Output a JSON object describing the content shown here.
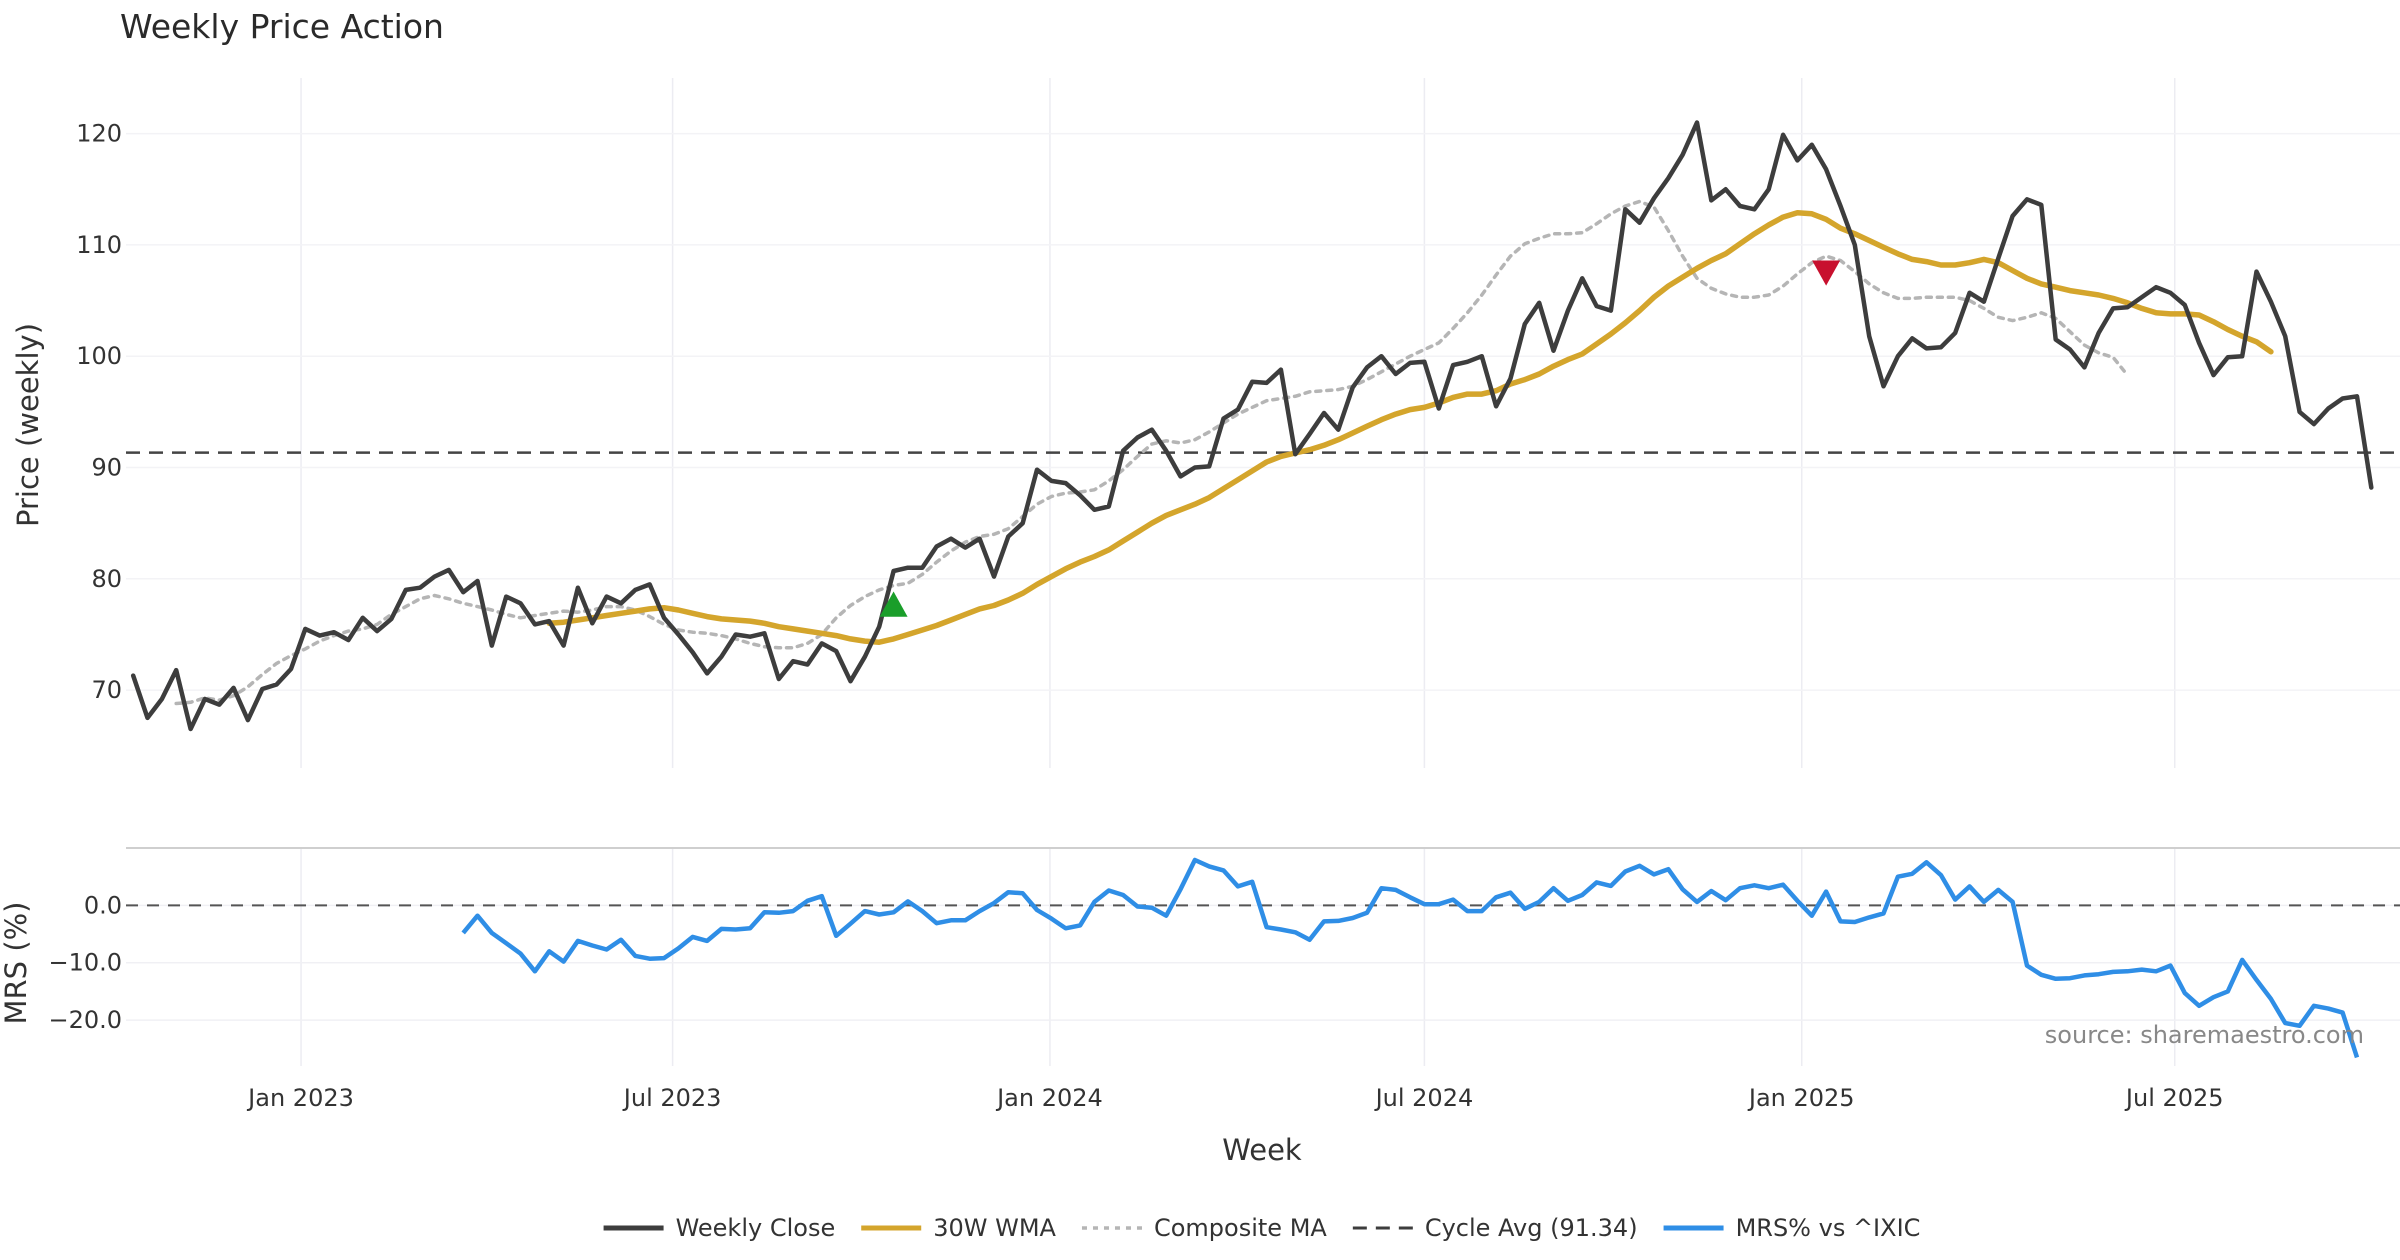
{
  "chart_data": {
    "type": "line",
    "title": "Weekly Price Action",
    "xlabel": "Week",
    "source": "source: sharemaestro.com",
    "x_ticks": [
      "Jan 2023",
      "Jul 2023",
      "Jan 2024",
      "Jul 2024",
      "Jan 2025",
      "Jul 2025"
    ],
    "x_range_weeks": [
      -10.5,
      148
    ],
    "price_panel": {
      "ylabel": "Price (weekly)",
      "ylim": [
        63,
        125
      ],
      "yticks": [
        "70",
        "80",
        "90",
        "100",
        "110",
        "120"
      ],
      "ytick_values": [
        70,
        80,
        90,
        100,
        110,
        120
      ],
      "cycle_avg": 91.34,
      "series": [
        {
          "name": "Weekly Close",
          "color": "#3d3d3d",
          "start_week": -10,
          "values": [
            71.3,
            67.5,
            69.2,
            71.8,
            66.5,
            69.2,
            68.7,
            70.2,
            67.3,
            70.1,
            70.5,
            71.9,
            75.5,
            74.9,
            75.2,
            74.5,
            76.5,
            75.3,
            76.4,
            79.0,
            79.2,
            80.2,
            80.8,
            78.8,
            79.8,
            74.0,
            78.4,
            77.8,
            75.9,
            76.2,
            74.0,
            79.2,
            76.0,
            78.4,
            77.8,
            79.0,
            79.5,
            76.5,
            75.0,
            73.4,
            71.5,
            73.0,
            75.0,
            74.8,
            75.1,
            71.0,
            72.6,
            72.3,
            74.2,
            73.5,
            70.8,
            73.0,
            75.7,
            80.7,
            81.0,
            81.0,
            82.9,
            83.6,
            82.8,
            83.6,
            80.2,
            83.8,
            85.0,
            89.8,
            88.8,
            88.6,
            87.5,
            86.2,
            86.5,
            91.5,
            92.7,
            93.4,
            91.5,
            89.2,
            90.0,
            90.1,
            94.4,
            95.2,
            97.7,
            97.6,
            98.8,
            91.2,
            93.0,
            94.9,
            93.4,
            97.2,
            99.0,
            100.0,
            98.4,
            99.4,
            99.5,
            95.3,
            99.2,
            99.5,
            100.0,
            95.5,
            98.0,
            102.9,
            104.8,
            100.5,
            104.1,
            107.0,
            104.5,
            104.1,
            113.2,
            112.0,
            114.2,
            116.0,
            118.1,
            121.0,
            114.0,
            115.0,
            113.5,
            113.2,
            115.0,
            119.9,
            117.6,
            119.0,
            116.8,
            113.5,
            110.0,
            101.8,
            97.3,
            100.0,
            101.6,
            100.7,
            100.8,
            102.1,
            105.7,
            104.9,
            108.8,
            112.6,
            114.1,
            113.6,
            101.5,
            100.6,
            99.0,
            102.1,
            104.3,
            104.4,
            105.3,
            106.2,
            105.7,
            104.6,
            101.2,
            98.3,
            99.9,
            100.0,
            107.6,
            104.9,
            101.8,
            95.0,
            93.9,
            95.3,
            96.2,
            96.4,
            88.2
          ]
        },
        {
          "name": "30W WMA",
          "color": "#d4a52c",
          "start_week": 19,
          "values": [
            76.0,
            76.1,
            76.3,
            76.5,
            76.7,
            76.9,
            77.1,
            77.3,
            77.4,
            77.2,
            76.9,
            76.6,
            76.4,
            76.3,
            76.2,
            76.0,
            75.7,
            75.5,
            75.3,
            75.1,
            74.9,
            74.6,
            74.4,
            74.3,
            74.6,
            75.0,
            75.4,
            75.8,
            76.3,
            76.8,
            77.3,
            77.6,
            78.1,
            78.7,
            79.5,
            80.2,
            80.9,
            81.5,
            82.0,
            82.6,
            83.4,
            84.2,
            85.0,
            85.7,
            86.2,
            86.7,
            87.3,
            88.1,
            88.9,
            89.7,
            90.5,
            91.0,
            91.3,
            91.6,
            92.0,
            92.5,
            93.1,
            93.7,
            94.3,
            94.8,
            95.2,
            95.4,
            95.8,
            96.3,
            96.6,
            96.6,
            96.9,
            97.5,
            97.9,
            98.4,
            99.1,
            99.7,
            100.2,
            101.1,
            102.0,
            103.0,
            104.1,
            105.3,
            106.3,
            107.1,
            107.9,
            108.6,
            109.2,
            110.1,
            111.0,
            111.8,
            112.5,
            112.9,
            112.8,
            112.3,
            111.5,
            111.0,
            110.4,
            109.8,
            109.2,
            108.7,
            108.5,
            108.2,
            108.2,
            108.4,
            108.7,
            108.4,
            107.7,
            107.0,
            106.5,
            106.2,
            105.9,
            105.7,
            105.5,
            105.2,
            104.8,
            104.3,
            103.9,
            103.8,
            103.8,
            103.7,
            103.1,
            102.4,
            101.8,
            101.3,
            100.4
          ]
        },
        {
          "name": "Composite MA",
          "color": "#b5b5b5",
          "start_week": -7,
          "values": [
            68.8,
            68.9,
            69.3,
            69.1,
            69.5,
            70.3,
            71.4,
            72.4,
            73.1,
            73.7,
            74.4,
            74.9,
            75.3,
            75.5,
            75.9,
            76.8,
            77.5,
            78.2,
            78.5,
            78.2,
            77.8,
            77.5,
            77.2,
            76.8,
            76.5,
            76.7,
            76.9,
            77.1,
            77.0,
            77.2,
            77.5,
            77.5,
            77.2,
            76.6,
            75.9,
            75.4,
            75.2,
            75.1,
            74.9,
            74.6,
            74.2,
            73.9,
            73.8,
            73.8,
            74.2,
            75.0,
            76.5,
            77.6,
            78.4,
            79.0,
            79.4,
            79.6,
            80.4,
            81.5,
            82.5,
            83.3,
            83.8,
            84.0,
            84.5,
            85.6,
            86.7,
            87.4,
            87.7,
            87.8,
            88.0,
            88.8,
            89.8,
            91.0,
            92.1,
            92.4,
            92.2,
            92.5,
            93.2,
            94.0,
            94.8,
            95.4,
            96.0,
            96.2,
            96.4,
            96.8,
            96.9,
            97.0,
            97.3,
            97.9,
            98.6,
            99.3,
            100.0,
            100.6,
            101.2,
            102.5,
            103.9,
            105.5,
            107.3,
            109.0,
            110.1,
            110.6,
            111.0,
            111.0,
            111.1,
            111.9,
            112.8,
            113.5,
            113.9,
            113.4,
            111.3,
            109.0,
            107.0,
            106.1,
            105.6,
            105.3,
            105.3,
            105.5,
            106.3,
            107.4,
            108.4,
            109.0,
            108.6,
            107.6,
            106.5,
            105.7,
            105.2,
            105.2,
            105.3,
            105.3,
            105.3,
            105.0,
            104.3,
            103.5,
            103.2,
            103.5,
            103.9,
            103.4,
            102.2,
            101.0,
            100.3,
            99.9,
            98.3
          ]
        }
      ],
      "markers": [
        {
          "name": "buy-signal",
          "type": "triangle-up",
          "color": "#1a9e2a",
          "week": 43,
          "value": 77.6
        },
        {
          "name": "sell-signal",
          "type": "triangle-down",
          "color": "#c8102e",
          "week": 108,
          "value": 107.6
        }
      ]
    },
    "mrs_panel": {
      "ylabel": "MRS (%)",
      "ylim": [
        -28,
        10
      ],
      "yticks": [
        "0.0",
        "−10.0",
        "−20.0"
      ],
      "ytick_values": [
        0,
        -10,
        -20
      ],
      "zero_line": 0,
      "series": {
        "name": "MRS% vs ^IXIC",
        "color": "#2f8ee6",
        "start_week": 13,
        "values": [
          -4.8,
          -1.8,
          -4.8,
          -6.6,
          -8.4,
          -11.5,
          -8.0,
          -9.8,
          -6.2,
          -7.0,
          -7.7,
          -6.0,
          -8.8,
          -9.3,
          -9.2,
          -7.5,
          -5.5,
          -6.2,
          -4.1,
          -4.2,
          -4.0,
          -1.2,
          -1.3,
          -1.0,
          0.8,
          1.6,
          -5.3,
          -3.2,
          -1.0,
          -1.6,
          -1.2,
          0.7,
          -1.0,
          -3.1,
          -2.6,
          -2.6,
          -1.0,
          0.4,
          2.3,
          2.1,
          -0.8,
          -2.3,
          -4.0,
          -3.5,
          0.6,
          2.6,
          1.8,
          -0.2,
          -0.4,
          -1.8,
          2.8,
          7.9,
          6.8,
          6.1,
          3.3,
          4.1,
          -3.8,
          -4.2,
          -4.7,
          -6.0,
          -2.8,
          -2.7,
          -2.2,
          -1.3,
          3.0,
          2.7,
          1.4,
          0.2,
          0.2,
          1.0,
          -1.0,
          -1.0,
          1.4,
          2.2,
          -0.6,
          0.6,
          3.0,
          0.8,
          1.8,
          4.0,
          3.4,
          5.9,
          6.9,
          5.4,
          6.3,
          2.8,
          0.6,
          2.5,
          0.9,
          3.0,
          3.5,
          3.0,
          3.6,
          0.8,
          -1.8,
          2.4,
          -2.8,
          -2.9,
          -2.1,
          -1.4,
          5.0,
          5.5,
          7.5,
          5.3,
          1.0,
          3.3,
          0.6,
          2.7,
          0.6,
          -10.5,
          -12.1,
          -12.8,
          -12.7,
          -12.2,
          -12.0,
          -11.6,
          -11.5,
          -11.2,
          -11.5,
          -10.5,
          -15.3,
          -17.5,
          -16.0,
          -15.0,
          -9.5,
          -13.0,
          -16.3,
          -20.5,
          -21.0,
          -17.5,
          -18.0,
          -18.7,
          -26.5
        ]
      }
    },
    "legend": [
      {
        "label": "Weekly Close",
        "style": "solid",
        "color": "#3d3d3d"
      },
      {
        "label": "30W WMA",
        "style": "solid",
        "color": "#d4a52c"
      },
      {
        "label": "Composite MA",
        "style": "dotted",
        "color": "#b5b5b5"
      },
      {
        "label": "Cycle Avg (91.34)",
        "style": "dashed",
        "color": "#3d3d3d"
      },
      {
        "label": "MRS% vs ^IXIC",
        "style": "solid",
        "color": "#2f8ee6"
      }
    ]
  }
}
